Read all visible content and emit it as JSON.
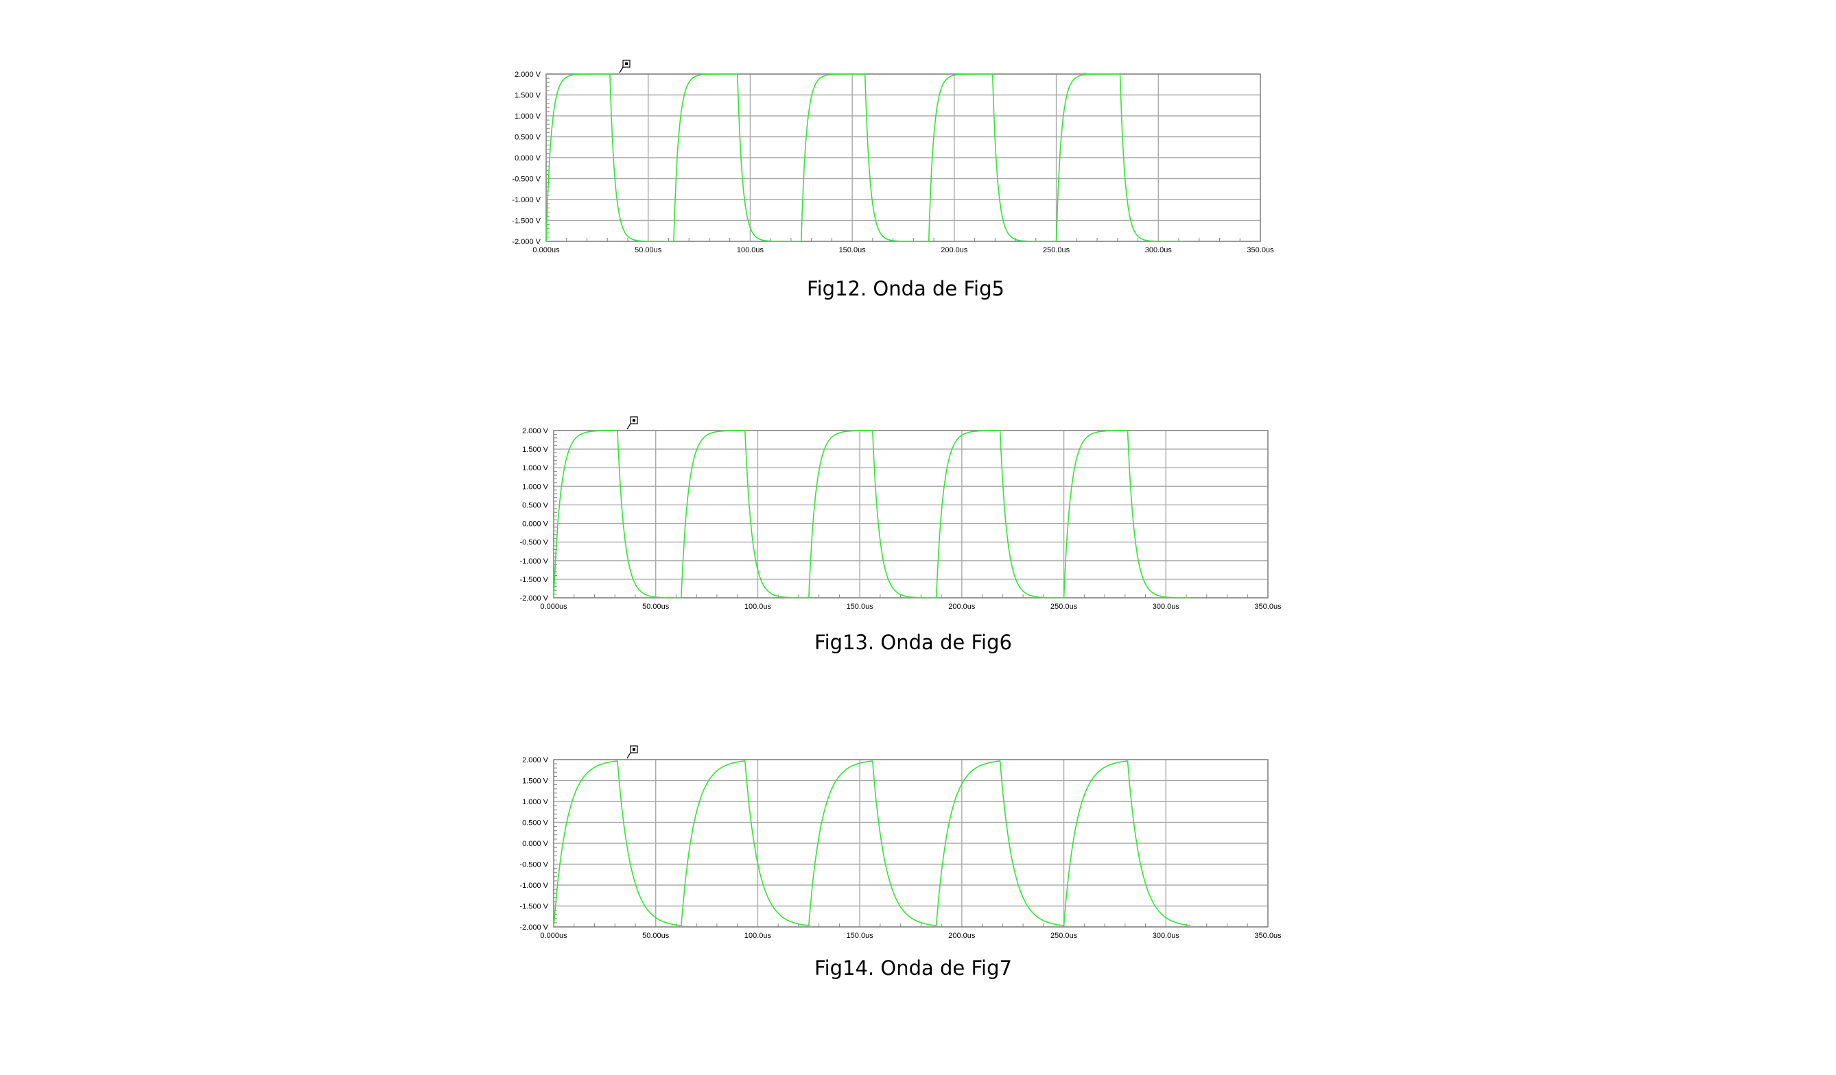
{
  "colors": {
    "trace": "#33e633",
    "grid": "#a9a9a9",
    "frame": "#808080",
    "text": "#000000",
    "background": "#ffffff"
  },
  "cursor_icon": "marker-flag-icon",
  "chart_data": [
    {
      "type": "line",
      "caption": "Fig12. Onda de Fig5",
      "xlim": [
        0,
        350
      ],
      "ylim": [
        -2,
        2
      ],
      "x_ticks": [
        "0.000us",
        "50.00us",
        "100.0us",
        "150.0us",
        "200.0us",
        "250.0us",
        "300.0us",
        "350.0us"
      ],
      "y_ticks": [
        "2.000 V",
        "1.500 V",
        "1.000 V",
        "0.500 V",
        "0.000 V",
        "-0.500 V",
        "-1.000 V",
        "-1.500 V",
        "-2.000 V"
      ],
      "grid": true,
      "series": [
        {
          "period_us": 62.5,
          "pulse_width_us": 31.25,
          "low_v": -2,
          "high_v": 2,
          "time_constant_us": 2.5,
          "x_end_us": 312
        }
      ]
    },
    {
      "type": "line",
      "caption": "Fig13. Onda de Fig6",
      "xlim": [
        0,
        350
      ],
      "ylim": [
        -2,
        2
      ],
      "x_ticks": [
        "0.000us",
        "50.00us",
        "100.0us",
        "150.0us",
        "200.0us",
        "250.0us",
        "300.0us",
        "350.0us"
      ],
      "y_ticks": [
        "2.000 V",
        "1.500 V",
        "1.000 V",
        "1.000 V",
        "0.500 V",
        "0.000 V",
        "-0.500 V",
        "-1.000 V",
        "-1.500 V",
        "-2.000 V"
      ],
      "grid": true,
      "series": [
        {
          "period_us": 62.5,
          "pulse_width_us": 31.25,
          "low_v": -2,
          "high_v": 2,
          "time_constant_us": 3.5,
          "x_end_us": 312
        }
      ]
    },
    {
      "type": "line",
      "caption": "Fig14. Onda de Fig7",
      "xlim": [
        0,
        350
      ],
      "ylim": [
        -2,
        2
      ],
      "x_ticks": [
        "0.000us",
        "50.00us",
        "100.0us",
        "150.0us",
        "200.0us",
        "250.0us",
        "300.0us",
        "350.0us"
      ],
      "y_ticks": [
        "2.000 V",
        "1.500 V",
        "1.000 V",
        "0.500 V",
        "0.000 V",
        "-0.500 V",
        "-1.000 V",
        "-1.500 V",
        "-2.000 V"
      ],
      "grid": true,
      "series": [
        {
          "period_us": 62.5,
          "pulse_width_us": 31.25,
          "low_v": -2,
          "high_v": 2,
          "time_constant_us": 6.5,
          "x_end_us": 312
        }
      ]
    }
  ]
}
